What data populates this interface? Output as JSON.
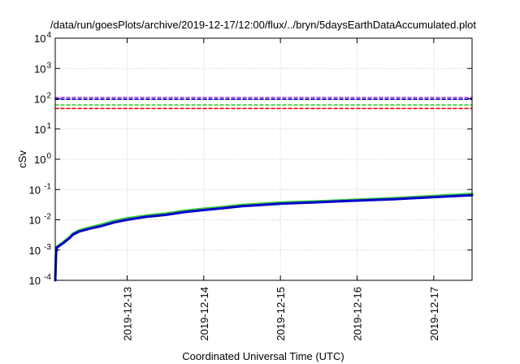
{
  "chart_data": {
    "type": "line",
    "title": "/data/run/goesPlots/archive/2019-12-17/12:00/flux/../bryn/5daysEarthDataAccumulated.plot",
    "xlabel": "Coordinated Universal Time (UTC)",
    "ylabel": "cSv",
    "yscale": "log",
    "ylim": [
      0.0001,
      10000
    ],
    "y_ticks": [
      {
        "base": "10",
        "exp": "-4"
      },
      {
        "base": "10",
        "exp": "-3"
      },
      {
        "base": "10",
        "exp": "-2"
      },
      {
        "base": "10",
        "exp": "-1"
      },
      {
        "base": "10",
        "exp": "0"
      },
      {
        "base": "10",
        "exp": "1"
      },
      {
        "base": "10",
        "exp": "2"
      },
      {
        "base": "10",
        "exp": "3"
      },
      {
        "base": "10",
        "exp": "4"
      }
    ],
    "xlim": [
      "2019-12-12 01:30",
      "2019-12-17 12:00"
    ],
    "x_ticks": [
      "2019-12-13",
      "2019-12-14",
      "2019-12-15",
      "2019-12-16",
      "2019-12-17"
    ],
    "grid": true,
    "legend": "none",
    "series": [
      {
        "color": "#33cc33",
        "style": "solid",
        "points": [
          [
            "2019-12-12 01:30",
            0.00012
          ],
          [
            "2019-12-12 01:45",
            0.0009
          ],
          [
            "2019-12-12 02:00",
            0.0013
          ],
          [
            "2019-12-12 04:00",
            0.0018
          ],
          [
            "2019-12-12 06:00",
            0.0027
          ],
          [
            "2019-12-12 07:00",
            0.0035
          ],
          [
            "2019-12-12 09:00",
            0.0045
          ],
          [
            "2019-12-12 12:00",
            0.0055
          ],
          [
            "2019-12-12 16:00",
            0.007
          ],
          [
            "2019-12-12 20:00",
            0.0092
          ],
          [
            "2019-12-13 00:00",
            0.0112
          ],
          [
            "2019-12-13 06:00",
            0.0138
          ],
          [
            "2019-12-13 12:00",
            0.016
          ],
          [
            "2019-12-13 18:00",
            0.0198
          ],
          [
            "2019-12-14 00:00",
            0.0232
          ],
          [
            "2019-12-14 06:00",
            0.0265
          ],
          [
            "2019-12-14 12:00",
            0.031
          ],
          [
            "2019-12-15 00:00",
            0.037
          ],
          [
            "2019-12-15 12:00",
            0.041
          ],
          [
            "2019-12-16 00:00",
            0.046
          ],
          [
            "2019-12-16 12:00",
            0.052
          ],
          [
            "2019-12-17 00:00",
            0.061
          ],
          [
            "2019-12-17 12:00",
            0.072
          ]
        ]
      },
      {
        "color": "#0000cc",
        "style": "solid",
        "points": [
          [
            "2019-12-12 01:30",
            0.0001
          ],
          [
            "2019-12-12 01:45",
            0.0008
          ],
          [
            "2019-12-12 02:00",
            0.0012
          ],
          [
            "2019-12-12 04:00",
            0.0017
          ],
          [
            "2019-12-12 06:00",
            0.0025
          ],
          [
            "2019-12-12 07:00",
            0.0032
          ],
          [
            "2019-12-12 09:00",
            0.0041
          ],
          [
            "2019-12-12 12:00",
            0.005
          ],
          [
            "2019-12-12 16:00",
            0.0062
          ],
          [
            "2019-12-12 20:00",
            0.0082
          ],
          [
            "2019-12-13 00:00",
            0.01
          ],
          [
            "2019-12-13 06:00",
            0.0125
          ],
          [
            "2019-12-13 12:00",
            0.0145
          ],
          [
            "2019-12-13 18:00",
            0.018
          ],
          [
            "2019-12-14 00:00",
            0.021
          ],
          [
            "2019-12-14 06:00",
            0.024
          ],
          [
            "2019-12-14 12:00",
            0.028
          ],
          [
            "2019-12-15 00:00",
            0.034
          ],
          [
            "2019-12-15 12:00",
            0.038
          ],
          [
            "2019-12-16 00:00",
            0.043
          ],
          [
            "2019-12-16 12:00",
            0.048
          ],
          [
            "2019-12-17 00:00",
            0.056
          ],
          [
            "2019-12-17 12:00",
            0.065
          ]
        ]
      },
      {
        "color": "#9933cc",
        "style": "dashed",
        "points": [
          [
            "2019-12-12 01:30",
            110
          ],
          [
            "2019-12-17 12:00",
            110
          ]
        ]
      },
      {
        "color": "#0000cc",
        "style": "dashed",
        "points": [
          [
            "2019-12-12 01:30",
            96
          ],
          [
            "2019-12-17 12:00",
            96
          ]
        ]
      },
      {
        "color": "#33cc33",
        "style": "dashed",
        "points": [
          [
            "2019-12-12 01:30",
            62
          ],
          [
            "2019-12-17 12:00",
            62
          ]
        ]
      },
      {
        "color": "#ff0000",
        "style": "dashed",
        "points": [
          [
            "2019-12-12 01:30",
            48
          ],
          [
            "2019-12-17 12:00",
            48
          ]
        ]
      }
    ]
  }
}
